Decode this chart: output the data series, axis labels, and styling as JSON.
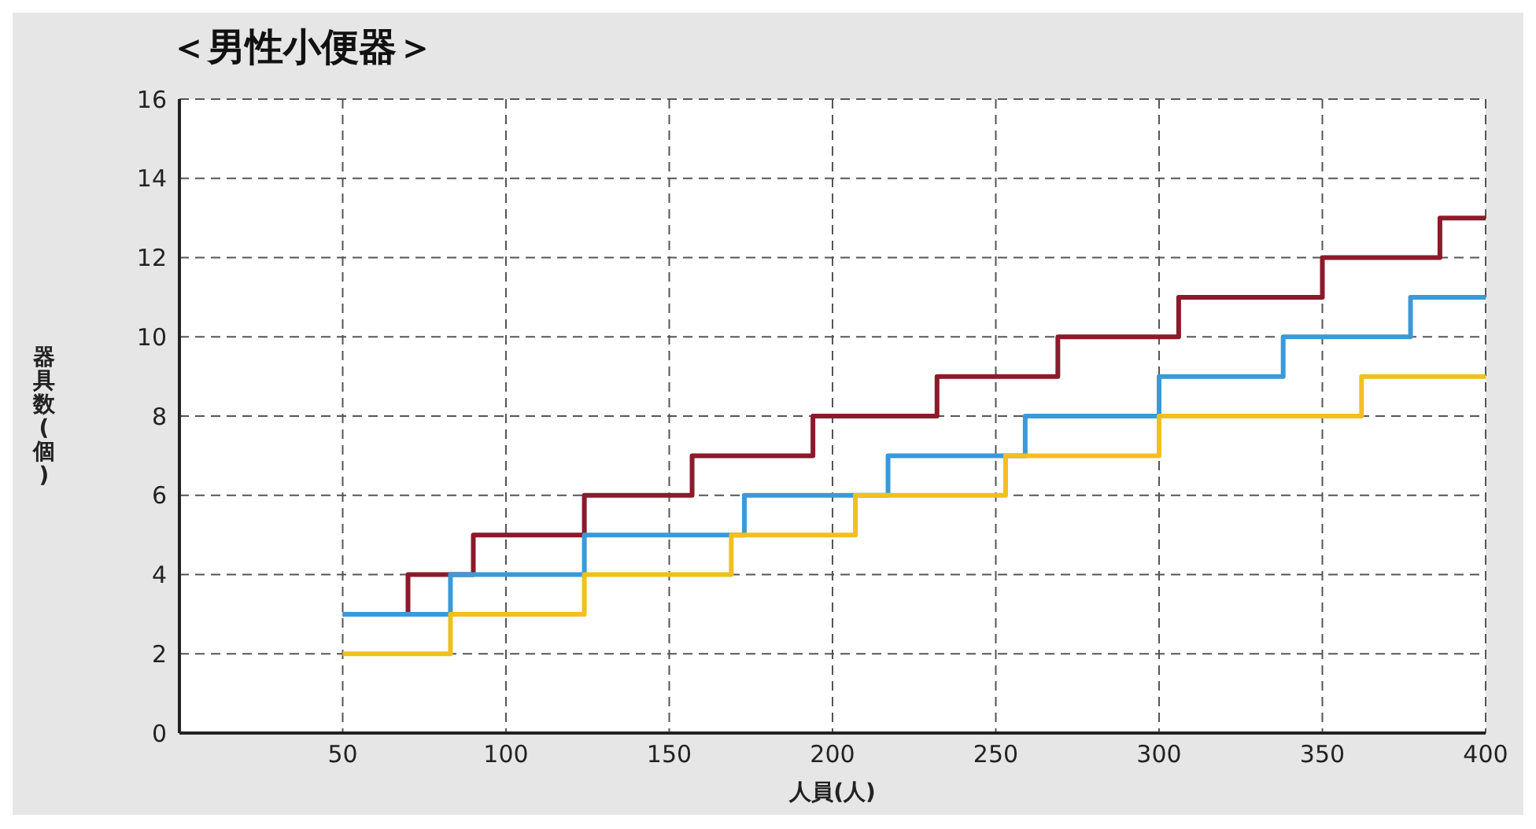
{
  "chart_data": {
    "type": "step",
    "title": "＜男性小便器＞",
    "xlabel": "人員(人)",
    "ylabel": "器具数(個)",
    "xlim": [
      0,
      400
    ],
    "xticks": [
      50,
      100,
      150,
      200,
      250,
      300,
      350,
      400
    ],
    "ylim": [
      0,
      16
    ],
    "yticks": [
      0,
      2,
      4,
      6,
      8,
      10,
      12,
      14,
      16
    ],
    "grid": true,
    "line_style": "solid",
    "series": [
      {
        "color": "#8b1a2b",
        "x": [
          50,
          70,
          90,
          124,
          157,
          194,
          232,
          269,
          306,
          350,
          386,
          400
        ],
        "values": [
          3,
          4,
          5,
          6,
          7,
          8,
          9,
          10,
          11,
          12,
          13,
          13
        ]
      },
      {
        "color": "#3a9ad9",
        "x": [
          50,
          83,
          124,
          173,
          217,
          259,
          300,
          338,
          377,
          400
        ],
        "values": [
          3,
          4,
          5,
          6,
          7,
          8,
          9,
          10,
          11,
          11
        ]
      },
      {
        "color": "#f0c020",
        "x": [
          50,
          83,
          124,
          169,
          207,
          253,
          300,
          362,
          400
        ],
        "values": [
          2,
          3,
          4,
          5,
          6,
          7,
          8,
          9,
          9
        ]
      }
    ]
  }
}
